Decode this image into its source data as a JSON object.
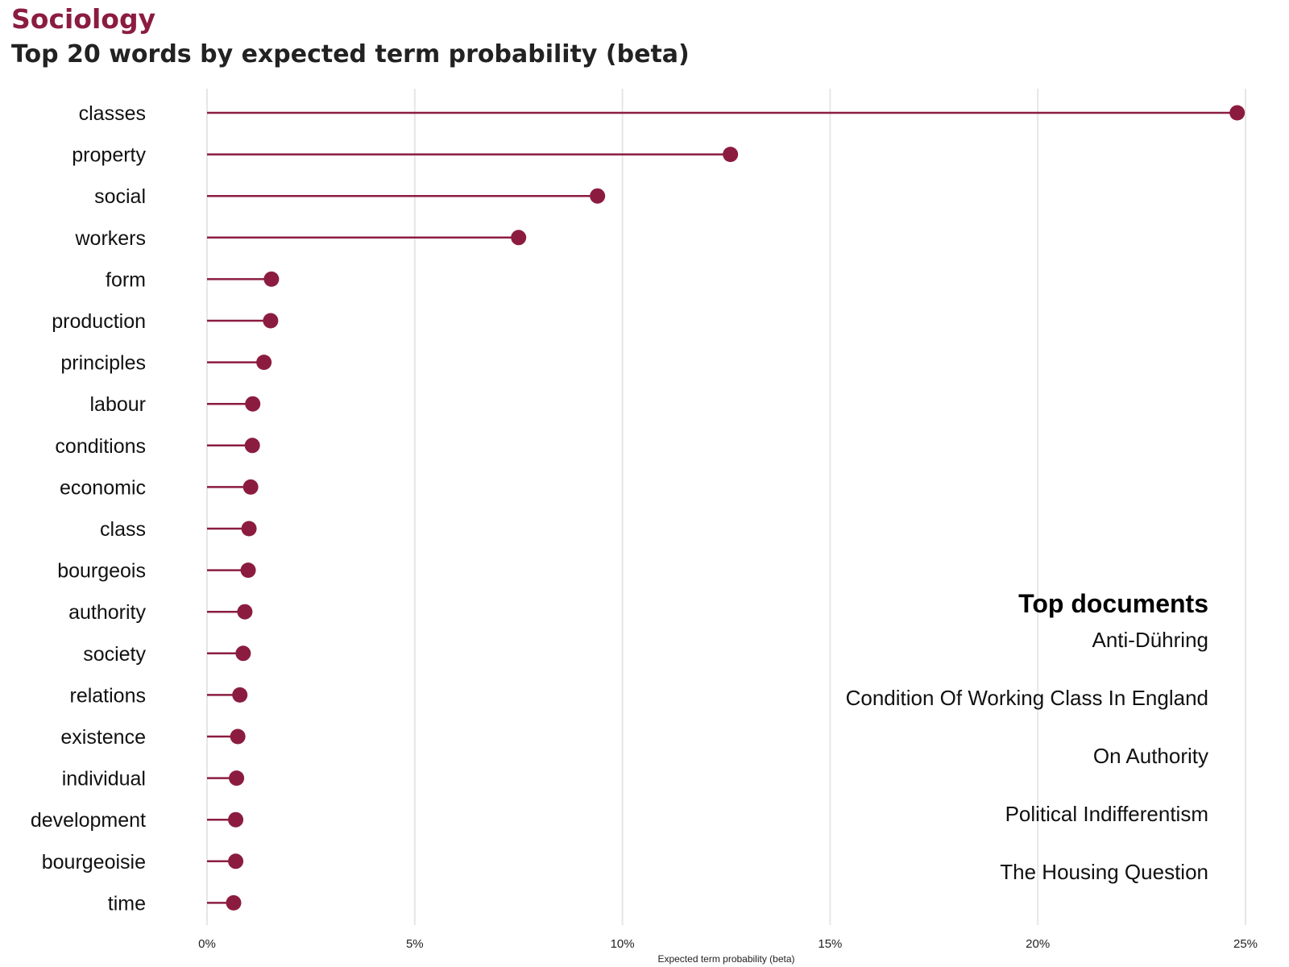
{
  "title": "Sociology",
  "subtitle": "Top 20 words by expected term probability (beta)",
  "colors": {
    "accent": "#8b1c40",
    "grid": "#e6e6e6"
  },
  "top_documents": {
    "title": "Top documents",
    "items": [
      "Anti-Dühring",
      "Condition Of Working Class In England",
      "On Authority",
      "Political Indifferentism",
      "The Housing Question"
    ]
  },
  "chart_data": {
    "type": "lollipop",
    "xlabel": "Expected term probability (beta)",
    "xlim": [
      0,
      0.25
    ],
    "xticks": [
      0,
      0.05,
      0.1,
      0.15,
      0.2,
      0.25
    ],
    "xtick_labels": [
      "0%",
      "5%",
      "10%",
      "15%",
      "20%",
      "25%"
    ],
    "grid": "vertical",
    "categories": [
      "classes",
      "property",
      "social",
      "workers",
      "form",
      "production",
      "principles",
      "labour",
      "conditions",
      "economic",
      "class",
      "bourgeois",
      "authority",
      "society",
      "relations",
      "existence",
      "individual",
      "development",
      "bourgeoisie",
      "time"
    ],
    "values": [
      0.248,
      0.126,
      0.094,
      0.075,
      0.0155,
      0.0153,
      0.0137,
      0.011,
      0.0109,
      0.0105,
      0.0101,
      0.0099,
      0.0091,
      0.0087,
      0.0079,
      0.0074,
      0.0071,
      0.0069,
      0.0069,
      0.0064
    ]
  }
}
